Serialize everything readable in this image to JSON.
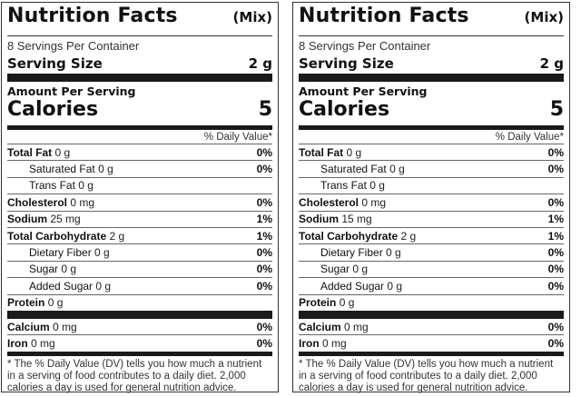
{
  "panels": [
    {
      "title": "Nutrition Facts",
      "variant": "(Mix)",
      "servings_per_container": "8 Servings Per Container",
      "serving_size_label": "Serving Size",
      "serving_size_value": "2 g",
      "amount_per_serving": "Amount Per Serving",
      "calories_label": "Calories",
      "calories_value": "5",
      "daily_value_header": "% Daily Value*",
      "nutrients": [
        {
          "name": "Total Fat",
          "amount": "0 g",
          "dv": "0%",
          "indent": false
        },
        {
          "name": "Saturated Fat",
          "amount": "0 g",
          "dv": "0%",
          "indent": true
        },
        {
          "name": "Trans Fat",
          "amount": "0 g",
          "dv": "",
          "indent": true
        },
        {
          "name": "Cholesterol",
          "amount": "0 mg",
          "dv": "0%",
          "indent": false
        },
        {
          "name": "Sodium",
          "amount": "25 mg",
          "dv": "1%",
          "indent": false
        },
        {
          "name": "Total Carbohydrate",
          "amount": "2 g",
          "dv": "1%",
          "indent": false
        },
        {
          "name": "Dietary Fiber",
          "amount": "0 g",
          "dv": "0%",
          "indent": true
        },
        {
          "name": "Sugar",
          "amount": "0 g",
          "dv": "0%",
          "indent": true
        },
        {
          "name": "Added Sugar",
          "amount": "0 g",
          "dv": "0%",
          "indent": true
        },
        {
          "name": "Protein",
          "amount": "0 g",
          "dv": "",
          "indent": false
        }
      ],
      "minerals": [
        {
          "name": "Calcium",
          "amount": "0 mg",
          "dv": "0%"
        },
        {
          "name": "Iron",
          "amount": "0 mg",
          "dv": "0%"
        }
      ],
      "footnote": "* The % Daily Value (DV) tells you how much a nutrient in a serving of food contributes to a daily diet. 2,000 calories a day is used for general nutrition advice."
    },
    {
      "title": "Nutrition Facts",
      "variant": "(Mix)",
      "servings_per_container": "8 Servings Per Container",
      "serving_size_label": "Serving Size",
      "serving_size_value": "2 g",
      "amount_per_serving": "Amount Per Serving",
      "calories_label": "Calories",
      "calories_value": "5",
      "daily_value_header": "% Daily Value*",
      "nutrients": [
        {
          "name": "Total Fat",
          "amount": "0 g",
          "dv": "0%",
          "indent": false
        },
        {
          "name": "Saturated Fat",
          "amount": "0 g",
          "dv": "0%",
          "indent": true
        },
        {
          "name": "Trans Fat",
          "amount": "0 g",
          "dv": "",
          "indent": true
        },
        {
          "name": "Cholesterol",
          "amount": "0 mg",
          "dv": "0%",
          "indent": false
        },
        {
          "name": "Sodium",
          "amount": "15 mg",
          "dv": "1%",
          "indent": false
        },
        {
          "name": "Total Carbohydrate",
          "amount": "2 g",
          "dv": "1%",
          "indent": false
        },
        {
          "name": "Dietary Fiber",
          "amount": "0 g",
          "dv": "0%",
          "indent": true
        },
        {
          "name": "Sugar",
          "amount": "0 g",
          "dv": "0%",
          "indent": true
        },
        {
          "name": "Added Sugar",
          "amount": "0 g",
          "dv": "0%",
          "indent": true
        },
        {
          "name": "Protein",
          "amount": "0 g",
          "dv": "",
          "indent": false
        }
      ],
      "minerals": [
        {
          "name": "Calcium",
          "amount": "0 mg",
          "dv": "0%"
        },
        {
          "name": "Iron",
          "amount": "0 mg",
          "dv": "0%"
        }
      ],
      "footnote": "* The % Daily Value (DV) tells you how much a nutrient in a serving of food contributes to a daily diet. 2,000 calories a day is used for general nutrition advice."
    }
  ]
}
